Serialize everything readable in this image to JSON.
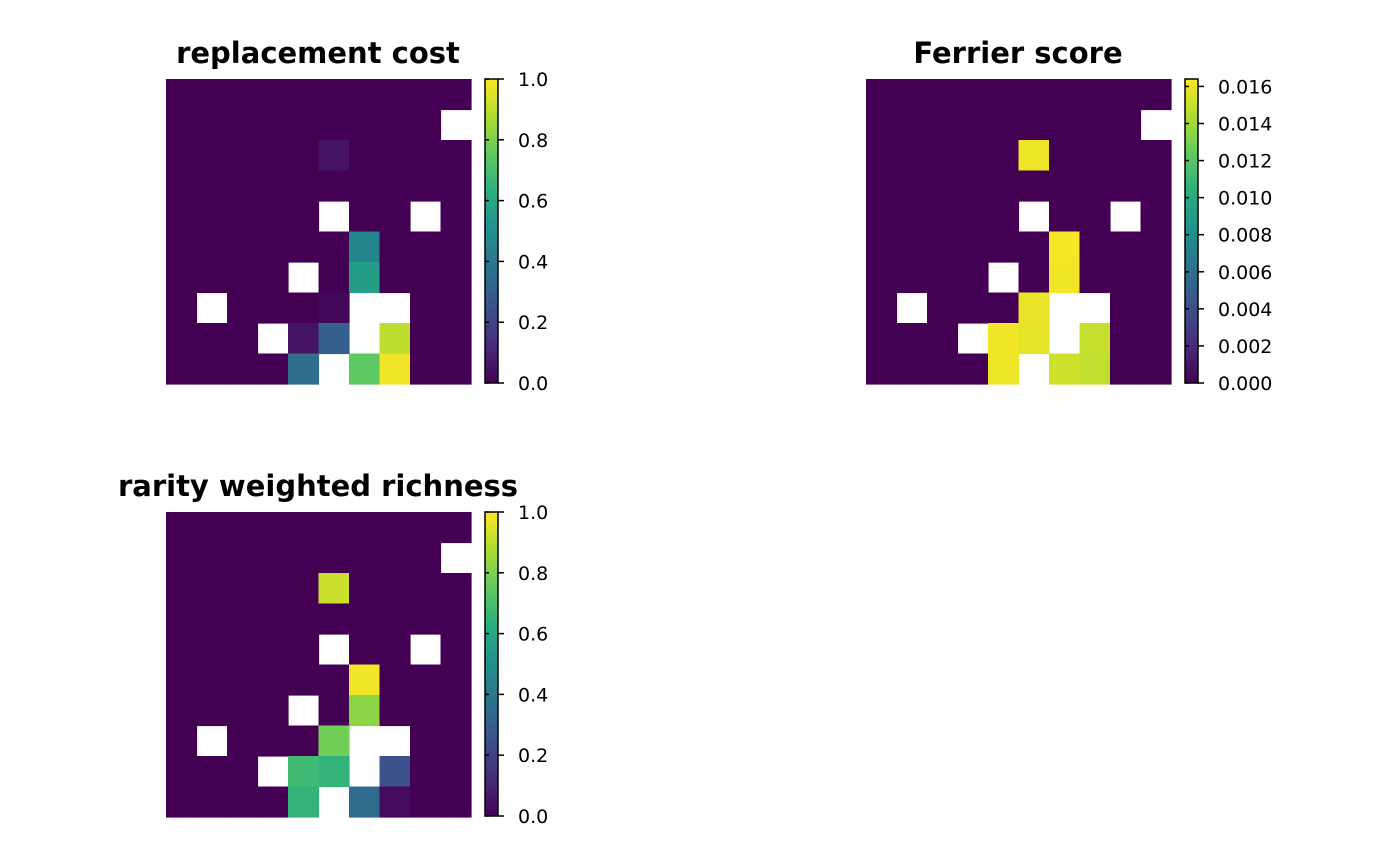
{
  "chart_data": [
    {
      "type": "heatmap",
      "title": "replacement cost",
      "legend_ticks": [
        "0.0",
        "0.2",
        "0.4",
        "0.6",
        "0.8",
        "1.0"
      ],
      "value_range": [
        0,
        1
      ],
      "grid": [
        [
          0,
          0,
          0,
          0,
          0,
          0,
          0,
          0,
          0,
          0
        ],
        [
          0,
          0,
          0,
          0,
          0,
          0,
          0,
          0,
          0,
          null
        ],
        [
          0,
          0,
          0,
          0,
          0,
          0.05,
          0,
          0,
          0,
          0
        ],
        [
          0,
          0,
          0,
          0,
          0,
          0,
          0,
          0,
          0,
          0
        ],
        [
          0,
          0,
          0,
          0,
          0,
          null,
          0,
          0,
          null,
          0
        ],
        [
          0,
          0,
          0,
          0,
          0,
          0,
          0.45,
          0,
          0,
          0
        ],
        [
          0,
          0,
          0,
          0,
          null,
          0,
          0.55,
          0,
          0,
          0
        ],
        [
          0,
          null,
          0,
          0,
          0,
          0.02,
          null,
          null,
          0,
          0
        ],
        [
          0,
          0,
          0,
          null,
          0.05,
          0.3,
          null,
          0.9,
          0,
          0
        ],
        [
          0,
          0,
          0,
          0,
          0.35,
          null,
          0.75,
          0.98,
          0,
          0
        ]
      ]
    },
    {
      "type": "heatmap",
      "title": "Ferrier score",
      "legend_ticks": [
        "0.000",
        "0.002",
        "0.004",
        "0.006",
        "0.008",
        "0.010",
        "0.012",
        "0.014",
        "0.016"
      ],
      "value_range": [
        0,
        0.0164
      ],
      "grid": [
        [
          0,
          0,
          0,
          0,
          0,
          0,
          0,
          0,
          0,
          0
        ],
        [
          0,
          0,
          0,
          0,
          0,
          0,
          0,
          0,
          0,
          null
        ],
        [
          0,
          0,
          0,
          0,
          0,
          0.016,
          0,
          0,
          0,
          0
        ],
        [
          0,
          0,
          0,
          0,
          0,
          0,
          0,
          0,
          0,
          0
        ],
        [
          0,
          0,
          0,
          0,
          0,
          null,
          0,
          0,
          null,
          0
        ],
        [
          0,
          0,
          0,
          0,
          0,
          0,
          0.0162,
          0,
          0,
          0
        ],
        [
          0,
          0,
          0,
          0,
          null,
          0,
          0.0161,
          0,
          0,
          0
        ],
        [
          0,
          null,
          0,
          0,
          0,
          0.0159,
          null,
          null,
          0,
          0
        ],
        [
          0,
          0,
          0,
          null,
          0.0161,
          0.0158,
          null,
          0.015,
          0,
          0
        ],
        [
          0,
          0,
          0,
          0,
          0.016,
          null,
          0.0152,
          0.0148,
          0,
          0
        ]
      ]
    },
    {
      "type": "heatmap",
      "title": "rarity weighted richness",
      "legend_ticks": [
        "0.0",
        "0.2",
        "0.4",
        "0.6",
        "0.8",
        "1.0"
      ],
      "value_range": [
        0,
        1
      ],
      "grid": [
        [
          0,
          0,
          0,
          0,
          0,
          0,
          0,
          0,
          0,
          0
        ],
        [
          0,
          0,
          0,
          0,
          0,
          0,
          0,
          0,
          0,
          null
        ],
        [
          0,
          0,
          0,
          0,
          0,
          0.92,
          0,
          0,
          0,
          0
        ],
        [
          0,
          0,
          0,
          0,
          0,
          0,
          0,
          0,
          0,
          0
        ],
        [
          0,
          0,
          0,
          0,
          0,
          null,
          0,
          0,
          null,
          0
        ],
        [
          0,
          0,
          0,
          0,
          0,
          0,
          0.98,
          0,
          0,
          0
        ],
        [
          0,
          0,
          0,
          0,
          null,
          0,
          0.82,
          0,
          0,
          0
        ],
        [
          0,
          null,
          0,
          0,
          0,
          0.78,
          null,
          null,
          0,
          0
        ],
        [
          0,
          0,
          0,
          null,
          0.68,
          0.65,
          null,
          0.25,
          0,
          0
        ],
        [
          0,
          0,
          0,
          0,
          0.65,
          null,
          0.35,
          0.03,
          0,
          0
        ]
      ]
    }
  ]
}
